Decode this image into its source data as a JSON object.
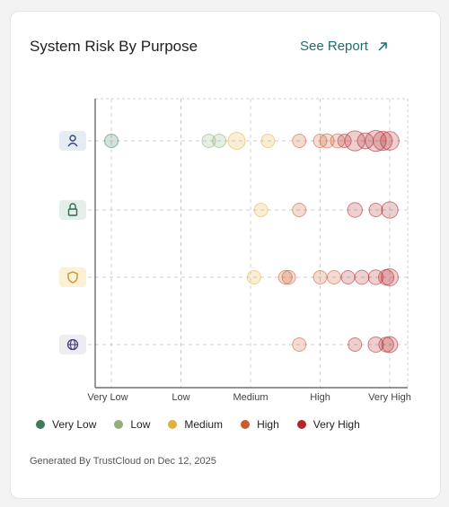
{
  "card": {
    "title": "System Risk By Purpose",
    "see_report_label": "See Report",
    "footer": "Generated By TrustCloud on Dec 12, 2025"
  },
  "colors": {
    "Very Low": "#3f7a5a",
    "Low": "#8fb07a",
    "Medium": "#e2b03c",
    "High": "#cc5a2e",
    "Very High": "#b3262b"
  },
  "chart_data": {
    "type": "scatter",
    "title": "System Risk By Purpose",
    "xlabel": "",
    "ylabel": "",
    "x_ticks": [
      "Very Low",
      "Low",
      "Medium",
      "High",
      "Very High"
    ],
    "grid": true,
    "legend_placement": "bottom",
    "categories": [
      {
        "name": "person",
        "icon": "person-icon"
      },
      {
        "name": "lock",
        "icon": "lock-icon"
      },
      {
        "name": "shield",
        "icon": "shield-icon"
      },
      {
        "name": "globe",
        "icon": "globe-icon"
      }
    ],
    "series": [
      {
        "name": "Very Low",
        "points": [
          {
            "x": 0.0,
            "category": 0,
            "size": 1
          }
        ]
      },
      {
        "name": "Low",
        "points": [
          {
            "x": 1.4,
            "category": 0,
            "size": 1
          },
          {
            "x": 1.55,
            "category": 0,
            "size": 1
          }
        ]
      },
      {
        "name": "Medium",
        "points": [
          {
            "x": 1.8,
            "category": 0,
            "size": 1.6
          },
          {
            "x": 2.25,
            "category": 0,
            "size": 1
          },
          {
            "x": 2.15,
            "category": 1,
            "size": 1
          },
          {
            "x": 2.05,
            "category": 2,
            "size": 1
          }
        ]
      },
      {
        "name": "High",
        "points": [
          {
            "x": 2.7,
            "category": 0,
            "size": 1
          },
          {
            "x": 3.0,
            "category": 0,
            "size": 1
          },
          {
            "x": 3.1,
            "category": 0,
            "size": 1.1
          },
          {
            "x": 3.25,
            "category": 0,
            "size": 1.1
          },
          {
            "x": 2.7,
            "category": 1,
            "size": 1
          },
          {
            "x": 2.5,
            "category": 2,
            "size": 1
          },
          {
            "x": 2.55,
            "category": 2,
            "size": 1
          },
          {
            "x": 3.0,
            "category": 2,
            "size": 1
          },
          {
            "x": 3.2,
            "category": 2,
            "size": 1
          },
          {
            "x": 2.7,
            "category": 3,
            "size": 1
          }
        ]
      },
      {
        "name": "Very High",
        "points": [
          {
            "x": 3.35,
            "category": 0,
            "size": 1
          },
          {
            "x": 3.5,
            "category": 0,
            "size": 2.2
          },
          {
            "x": 3.65,
            "category": 0,
            "size": 1.4
          },
          {
            "x": 3.8,
            "category": 0,
            "size": 2.4
          },
          {
            "x": 3.9,
            "category": 0,
            "size": 2
          },
          {
            "x": 4.0,
            "category": 0,
            "size": 1.9
          },
          {
            "x": 3.5,
            "category": 1,
            "size": 1.2
          },
          {
            "x": 3.8,
            "category": 1,
            "size": 1
          },
          {
            "x": 4.0,
            "category": 1,
            "size": 1.5
          },
          {
            "x": 3.4,
            "category": 2,
            "size": 1
          },
          {
            "x": 3.6,
            "category": 2,
            "size": 1.1
          },
          {
            "x": 3.8,
            "category": 2,
            "size": 1.2
          },
          {
            "x": 3.95,
            "category": 2,
            "size": 1.3
          },
          {
            "x": 4.0,
            "category": 2,
            "size": 1.6
          },
          {
            "x": 3.5,
            "category": 3,
            "size": 1
          },
          {
            "x": 3.8,
            "category": 3,
            "size": 1.3
          },
          {
            "x": 3.95,
            "category": 3,
            "size": 1.2
          },
          {
            "x": 4.0,
            "category": 3,
            "size": 1.4
          }
        ]
      }
    ]
  },
  "legend": [
    {
      "label": "Very Low"
    },
    {
      "label": "Low"
    },
    {
      "label": "Medium"
    },
    {
      "label": "High"
    },
    {
      "label": "Very High"
    }
  ]
}
